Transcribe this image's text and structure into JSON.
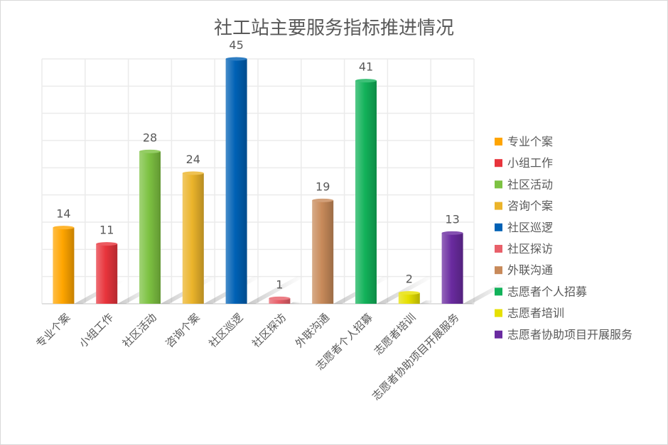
{
  "chart_data": {
    "type": "bar",
    "title": "社工站主要服务指标推进情况",
    "xlabel": "",
    "ylabel": "",
    "ylim": [
      0,
      45
    ],
    "grid": true,
    "legend_position": "right",
    "categories": [
      "专业个案",
      "小组工作",
      "社区活动",
      "咨询个案",
      "社区巡逻",
      "社区探访",
      "外联沟通",
      "志愿者个人招募",
      "志愿者培训",
      "志愿者协助项目开展服务"
    ],
    "values": [
      14,
      11,
      28,
      24,
      45,
      1,
      19,
      41,
      2,
      13
    ],
    "colors": [
      "#FFA500",
      "#E8343C",
      "#7DC242",
      "#EBB42B",
      "#0061B5",
      "#E8606A",
      "#C88A5A",
      "#12B25A",
      "#E6E000",
      "#6A2BA0"
    ]
  }
}
